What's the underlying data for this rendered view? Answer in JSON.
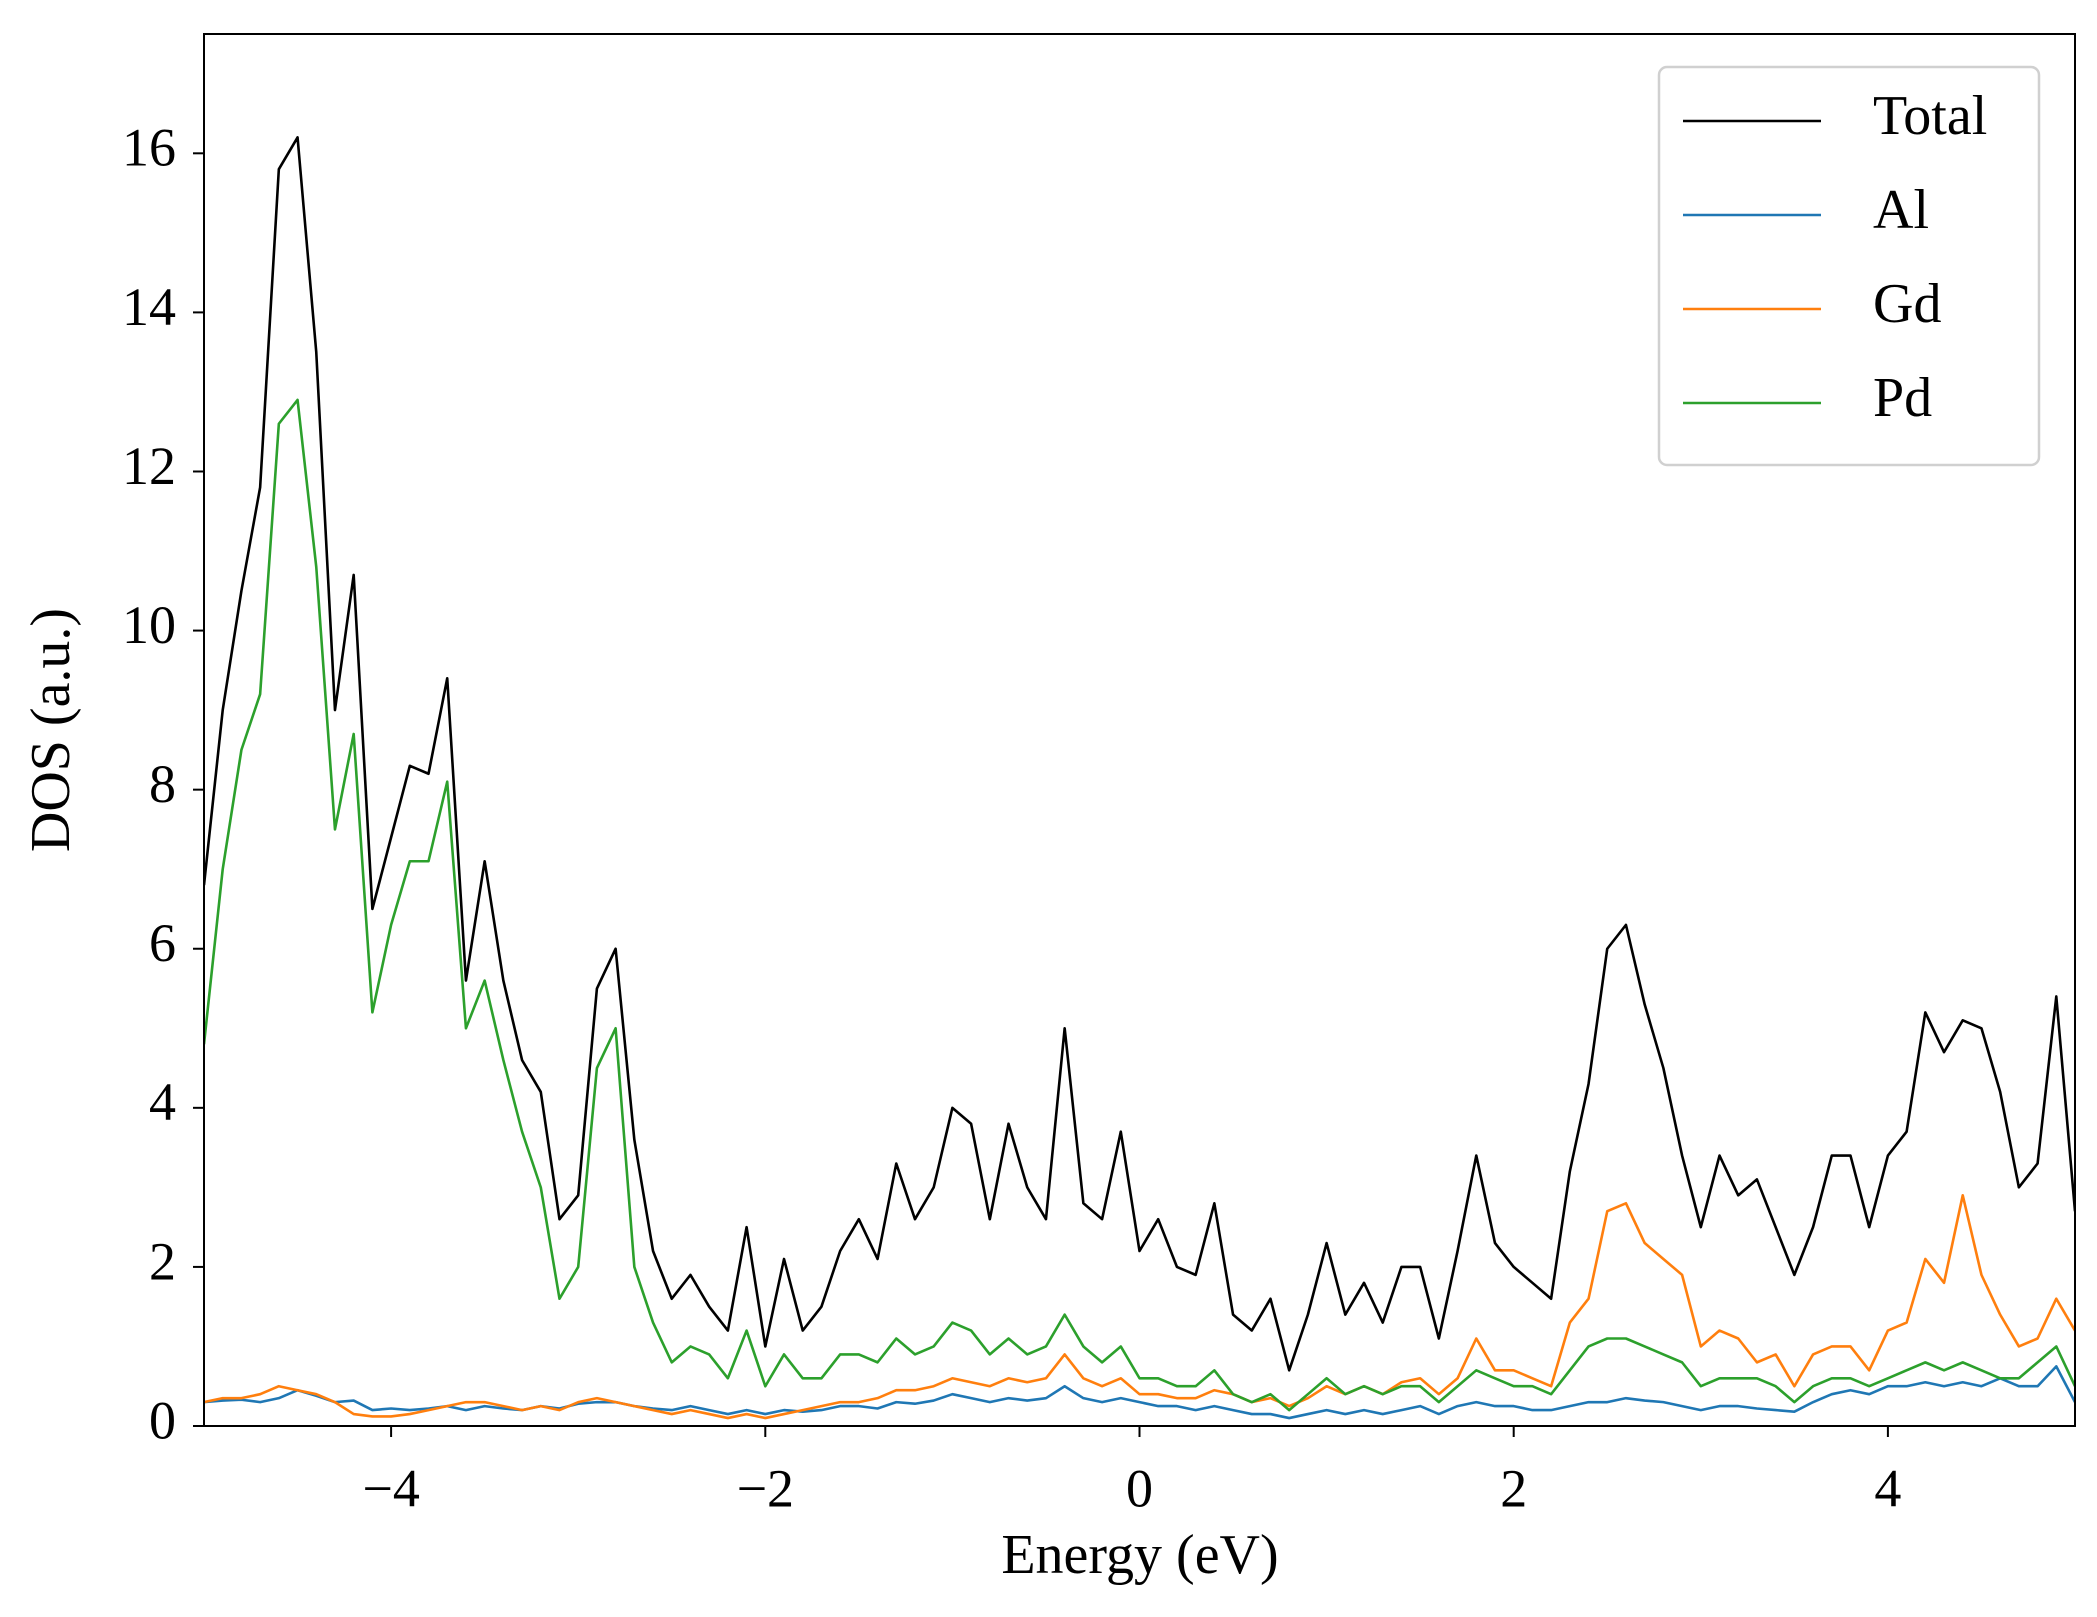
{
  "chart_data": {
    "type": "line",
    "xlabel": "Energy (eV)",
    "ylabel": "DOS (a.u.)",
    "x": [
      -5.0,
      -4.9,
      -4.8,
      -4.7,
      -4.6,
      -4.5,
      -4.4,
      -4.3,
      -4.2,
      -4.1,
      -4.0,
      -3.9,
      -3.8,
      -3.7,
      -3.6,
      -3.5,
      -3.4,
      -3.3,
      -3.2,
      -3.1,
      -3.0,
      -2.9,
      -2.8,
      -2.7,
      -2.6,
      -2.5,
      -2.4,
      -2.3,
      -2.2,
      -2.1,
      -2.0,
      -1.9,
      -1.8,
      -1.7,
      -1.6,
      -1.5,
      -1.4,
      -1.3,
      -1.2,
      -1.1,
      -1.0,
      -0.9,
      -0.8,
      -0.7,
      -0.6,
      -0.5,
      -0.4,
      -0.3,
      -0.2,
      -0.1,
      0.0,
      0.1,
      0.2,
      0.3,
      0.4,
      0.5,
      0.6,
      0.7,
      0.8,
      0.9,
      1.0,
      1.1,
      1.2,
      1.3,
      1.4,
      1.5,
      1.6,
      1.7,
      1.8,
      1.9,
      2.0,
      2.1,
      2.2,
      2.3,
      2.4,
      2.5,
      2.6,
      2.7,
      2.8,
      2.9,
      3.0,
      3.1,
      3.2,
      3.3,
      3.4,
      3.5,
      3.6,
      3.7,
      3.8,
      3.9,
      4.0,
      4.1,
      4.2,
      4.3,
      4.4,
      4.5,
      4.6,
      4.7,
      4.8,
      4.9,
      5.0
    ],
    "series": [
      {
        "name": "Total",
        "color": "#000000",
        "values": [
          6.8,
          9.0,
          10.5,
          11.8,
          15.8,
          16.2,
          13.5,
          9.0,
          10.7,
          6.5,
          7.4,
          8.3,
          8.2,
          9.4,
          5.6,
          7.1,
          5.6,
          4.6,
          4.2,
          2.6,
          2.9,
          5.5,
          6.0,
          3.6,
          2.2,
          1.6,
          1.9,
          1.5,
          1.2,
          2.5,
          1.0,
          2.1,
          1.2,
          1.5,
          2.2,
          2.6,
          2.1,
          3.3,
          2.6,
          3.0,
          4.0,
          3.8,
          2.6,
          3.8,
          3.0,
          2.6,
          5.0,
          2.8,
          2.6,
          3.7,
          2.2,
          2.6,
          2.0,
          1.9,
          2.8,
          1.4,
          1.2,
          1.6,
          0.7,
          1.4,
          2.3,
          1.4,
          1.8,
          1.3,
          2.0,
          2.0,
          1.1,
          2.2,
          3.4,
          2.3,
          2.0,
          1.8,
          1.6,
          3.2,
          4.3,
          6.0,
          6.3,
          5.3,
          4.5,
          3.4,
          2.5,
          3.4,
          2.9,
          3.1,
          2.5,
          1.9,
          2.5,
          3.4,
          3.4,
          2.5,
          3.4,
          3.7,
          5.2,
          4.7,
          5.1,
          5.0,
          4.2,
          3.0,
          3.3,
          5.4,
          2.7
        ]
      },
      {
        "name": "Al",
        "color": "#1f77b4",
        "values": [
          0.3,
          0.32,
          0.33,
          0.3,
          0.35,
          0.45,
          0.38,
          0.3,
          0.32,
          0.2,
          0.22,
          0.2,
          0.22,
          0.25,
          0.2,
          0.25,
          0.22,
          0.2,
          0.25,
          0.22,
          0.28,
          0.3,
          0.3,
          0.25,
          0.22,
          0.2,
          0.25,
          0.2,
          0.15,
          0.2,
          0.15,
          0.2,
          0.18,
          0.2,
          0.25,
          0.25,
          0.22,
          0.3,
          0.28,
          0.32,
          0.4,
          0.35,
          0.3,
          0.35,
          0.32,
          0.35,
          0.5,
          0.35,
          0.3,
          0.35,
          0.3,
          0.25,
          0.25,
          0.2,
          0.25,
          0.2,
          0.15,
          0.15,
          0.1,
          0.15,
          0.2,
          0.15,
          0.2,
          0.15,
          0.2,
          0.25,
          0.15,
          0.25,
          0.3,
          0.25,
          0.25,
          0.2,
          0.2,
          0.25,
          0.3,
          0.3,
          0.35,
          0.32,
          0.3,
          0.25,
          0.2,
          0.25,
          0.25,
          0.22,
          0.2,
          0.18,
          0.3,
          0.4,
          0.45,
          0.4,
          0.5,
          0.5,
          0.55,
          0.5,
          0.55,
          0.5,
          0.6,
          0.5,
          0.5,
          0.75,
          0.3
        ]
      },
      {
        "name": "Gd",
        "color": "#ff7f0e",
        "values": [
          0.3,
          0.35,
          0.35,
          0.4,
          0.5,
          0.45,
          0.4,
          0.3,
          0.15,
          0.12,
          0.12,
          0.15,
          0.2,
          0.25,
          0.3,
          0.3,
          0.25,
          0.2,
          0.25,
          0.2,
          0.3,
          0.35,
          0.3,
          0.25,
          0.2,
          0.15,
          0.2,
          0.15,
          0.1,
          0.15,
          0.1,
          0.15,
          0.2,
          0.25,
          0.3,
          0.3,
          0.35,
          0.45,
          0.45,
          0.5,
          0.6,
          0.55,
          0.5,
          0.6,
          0.55,
          0.6,
          0.9,
          0.6,
          0.5,
          0.6,
          0.4,
          0.4,
          0.35,
          0.35,
          0.45,
          0.4,
          0.3,
          0.35,
          0.25,
          0.35,
          0.5,
          0.4,
          0.5,
          0.4,
          0.55,
          0.6,
          0.4,
          0.6,
          1.1,
          0.7,
          0.7,
          0.6,
          0.5,
          1.3,
          1.6,
          2.7,
          2.8,
          2.3,
          2.1,
          1.9,
          1.0,
          1.2,
          1.1,
          0.8,
          0.9,
          0.5,
          0.9,
          1.0,
          1.0,
          0.7,
          1.2,
          1.3,
          2.1,
          1.8,
          2.9,
          1.9,
          1.4,
          1.0,
          1.1,
          1.6,
          1.2
        ]
      },
      {
        "name": "Pd",
        "color": "#2ca02c",
        "values": [
          4.8,
          7.0,
          8.5,
          9.2,
          12.6,
          12.9,
          10.8,
          7.5,
          8.7,
          5.2,
          6.3,
          7.1,
          7.1,
          8.1,
          5.0,
          5.6,
          4.6,
          3.7,
          3.0,
          1.6,
          2.0,
          4.5,
          5.0,
          2.0,
          1.3,
          0.8,
          1.0,
          0.9,
          0.6,
          1.2,
          0.5,
          0.9,
          0.6,
          0.6,
          0.9,
          0.9,
          0.8,
          1.1,
          0.9,
          1.0,
          1.3,
          1.2,
          0.9,
          1.1,
          0.9,
          1.0,
          1.4,
          1.0,
          0.8,
          1.0,
          0.6,
          0.6,
          0.5,
          0.5,
          0.7,
          0.4,
          0.3,
          0.4,
          0.2,
          0.4,
          0.6,
          0.4,
          0.5,
          0.4,
          0.5,
          0.5,
          0.3,
          0.5,
          0.7,
          0.6,
          0.5,
          0.5,
          0.4,
          0.7,
          1.0,
          1.1,
          1.1,
          1.0,
          0.9,
          0.8,
          0.5,
          0.6,
          0.6,
          0.6,
          0.5,
          0.3,
          0.5,
          0.6,
          0.6,
          0.5,
          0.6,
          0.7,
          0.8,
          0.7,
          0.8,
          0.7,
          0.6,
          0.6,
          0.8,
          1.0,
          0.5
        ]
      }
    ],
    "xlim": [
      -5,
      5
    ],
    "xticks": [
      {
        "value": -4,
        "label": "−4"
      },
      {
        "value": -2,
        "label": "−2"
      },
      0,
      2,
      4
    ],
    "ylim": [
      0,
      17.5
    ],
    "yticks": [
      0,
      2,
      4,
      6,
      8,
      10,
      12,
      14,
      16
    ],
    "legend": "upper right"
  }
}
